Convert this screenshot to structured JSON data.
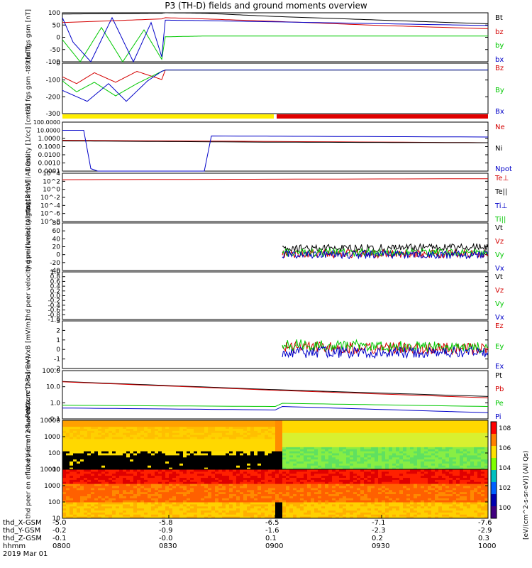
{
  "title": "P3 (TH-D) fields and ground moments overview",
  "footer": {
    "row_labels": [
      "thd_X-GSM",
      "thd_Y-GSM",
      "thd_Z-GSM",
      "hhmm",
      "2019 Mar 01"
    ],
    "ticks": [
      {
        "x": "-5.0",
        "y": "-0.2",
        "z": "-0.1",
        "t": "0800"
      },
      {
        "x": "-5.8",
        "y": "-0.9",
        "z": "-0.0",
        "t": "0830"
      },
      {
        "x": "-6.5",
        "y": "-1.6",
        "z": "0.1",
        "t": "0900"
      },
      {
        "x": "-7.1",
        "y": "-2.3",
        "z": "0.2",
        "t": "0930"
      },
      {
        "x": "-7.6",
        "y": "-2.9",
        "z": "0.3",
        "t": "1000"
      }
    ]
  },
  "colorbar_label": "[eV/(cm^2-s-sr-eV)] (All Qs)",
  "chart_data": [
    {
      "type": "line",
      "panel": "fgs_gsm",
      "ylabel": "thd fgs gsm [nT]",
      "ylim": [
        -100,
        100
      ],
      "ticks": [
        "100",
        "50",
        "0",
        "-50",
        "-100"
      ],
      "legend": [
        {
          "name": "Bt",
          "color": "#000000"
        },
        {
          "name": "bz",
          "color": "#d40000"
        },
        {
          "name": "by",
          "color": "#00c800"
        },
        {
          "name": "bx",
          "color": "#0000c8"
        }
      ],
      "series": [
        {
          "name": "Bt",
          "x": [
            0,
            20,
            28,
            29,
            40,
            60,
            90,
            120
          ],
          "y": [
            95,
            97,
            98,
            100,
            98,
            85,
            70,
            55
          ]
        },
        {
          "name": "bz",
          "x": [
            0,
            28,
            29,
            40,
            60,
            90,
            120
          ],
          "y": [
            60,
            75,
            80,
            75,
            65,
            48,
            35
          ]
        },
        {
          "name": "by",
          "x": [
            0,
            5,
            11,
            17,
            23,
            28,
            29,
            40,
            80,
            120
          ],
          "y": [
            -10,
            -100,
            40,
            -100,
            30,
            -90,
            2,
            5,
            5,
            5
          ]
        },
        {
          "name": "bx",
          "x": [
            0,
            3,
            8,
            14,
            20,
            25,
            28,
            29,
            40,
            80,
            120
          ],
          "y": [
            80,
            -20,
            -100,
            80,
            -100,
            60,
            -80,
            70,
            68,
            58,
            48
          ]
        }
      ]
    },
    {
      "type": "line",
      "panel": "fgs_gsm_t89",
      "ylabel": "thd fgs gsm -t89 [nT]",
      "ylim": [
        -320,
        50
      ],
      "ticks": [
        "0",
        "-100",
        "-200",
        "-300"
      ],
      "legend": [
        {
          "name": "Bz",
          "color": "#d40000"
        },
        {
          "name": "By",
          "color": "#00c800"
        },
        {
          "name": "Bx",
          "color": "#0000c8"
        }
      ],
      "series": [
        {
          "name": "Bz",
          "x": [
            0,
            4,
            9,
            15,
            21,
            28,
            29,
            120
          ],
          "y": [
            -50,
            -100,
            -20,
            -90,
            -10,
            -70,
            0,
            0
          ]
        },
        {
          "name": "By",
          "x": [
            0,
            4,
            9,
            15,
            21,
            28,
            29,
            120
          ],
          "y": [
            -80,
            -160,
            -90,
            -190,
            -100,
            -10,
            0,
            0
          ]
        },
        {
          "name": "Bx",
          "x": [
            0,
            7,
            13,
            18,
            24,
            28,
            29,
            120
          ],
          "y": [
            -150,
            -230,
            -100,
            -230,
            -80,
            -10,
            0,
            0
          ]
        }
      ]
    },
    {
      "type": "line",
      "panel": "density",
      "ylabel": "Density [1/cc] [cm-3]",
      "log": true,
      "ylim": [
        0.0001,
        100
      ],
      "ticks": [
        "100.0000",
        "10.0000",
        "1.0000",
        "0.1000",
        "0.0100",
        "0.0010",
        "0.0001"
      ],
      "legend": [
        {
          "name": "Ne",
          "color": "#d40000"
        },
        {
          "name": "Ni",
          "color": "#000000"
        },
        {
          "name": "Npot",
          "color": "#0000c8"
        }
      ],
      "series": [
        {
          "name": "Ne",
          "x": [
            0,
            120
          ],
          "y": [
            0.6,
            0.3
          ]
        },
        {
          "name": "Ni",
          "x": [
            0,
            60,
            120
          ],
          "y": [
            0.5,
            0.35,
            0.3
          ]
        },
        {
          "name": "Npot",
          "x": [
            0,
            6,
            8,
            10,
            12,
            40,
            42,
            120
          ],
          "y": [
            10,
            10,
            0.0002,
            0.0001,
            0.0001,
            0.0001,
            2,
            1.5
          ]
        }
      ]
    },
    {
      "type": "line",
      "panel": "magt3",
      "ylabel": "magt3 [eV]",
      "log": true,
      "ylim": [
        1e-10,
        100000.0
      ],
      "ticks": [
        "10^4",
        "10^2",
        "10^0",
        "10^-2",
        "10^-4",
        "10^-6",
        "10^-8"
      ],
      "legend": [
        {
          "name": "Te⊥",
          "color": "#d40000"
        },
        {
          "name": "Te||",
          "color": "#000000"
        },
        {
          "name": "Ti⊥",
          "color": "#0000c8"
        },
        {
          "name": "Ti||",
          "color": "#00c800"
        }
      ],
      "series": [
        {
          "name": "Te⊥",
          "x": [
            0,
            120
          ],
          "y": [
            1000,
            2000
          ]
        }
      ]
    },
    {
      "type": "line",
      "panel": "peir_velocity",
      "ylabel": "thd peir velocity gsm [km/s] (All Qs)",
      "ylim": [
        -40,
        80
      ],
      "ticks": [
        "80",
        "60",
        "40",
        "20",
        "0",
        "-20",
        "-40"
      ],
      "legend": [
        {
          "name": "Vt",
          "color": "#000000"
        },
        {
          "name": "Vz",
          "color": "#d40000"
        },
        {
          "name": "Vy",
          "color": "#00c800"
        },
        {
          "name": "Vx",
          "color": "#0000c8"
        }
      ],
      "series": [
        {
          "name": "Vt",
          "x": [
            62,
            120
          ],
          "y": [
            15,
            18
          ]
        },
        {
          "name": "Vz",
          "x": [
            62,
            120
          ],
          "y": [
            2,
            2
          ]
        },
        {
          "name": "Vy",
          "x": [
            62,
            120
          ],
          "y": [
            5,
            5
          ]
        },
        {
          "name": "Vx",
          "x": [
            62,
            120
          ],
          "y": [
            0,
            0
          ]
        }
      ]
    },
    {
      "type": "line",
      "panel": "peer_velocity",
      "ylabel": "thd peer velocity gsm [km/s] (All Qs)",
      "ylim": [
        -1,
        1
      ],
      "ticks": [
        "1.0",
        "0.8",
        "0.6",
        "0.4",
        "0.2",
        "0.0",
        "-0.2",
        "-0.4",
        "-0.6",
        "-0.8",
        "-1.0"
      ],
      "legend": [
        {
          "name": "Vt",
          "color": "#000000"
        },
        {
          "name": "Vz",
          "color": "#d40000"
        },
        {
          "name": "Vy",
          "color": "#00c800"
        },
        {
          "name": "Vx",
          "color": "#0000c8"
        }
      ],
      "series": []
    },
    {
      "type": "line",
      "panel": "efield",
      "ylabel": "E=-VxB [mV/m]",
      "ylim": [
        -2,
        3
      ],
      "ticks": [
        "3",
        "2",
        "1",
        "0",
        "-1",
        "-2"
      ],
      "legend": [
        {
          "name": "Ez",
          "color": "#d40000"
        },
        {
          "name": "Ey",
          "color": "#00c800"
        },
        {
          "name": "Ex",
          "color": "#0000c8"
        }
      ],
      "series": [
        {
          "name": "Ez",
          "x": [
            62,
            120
          ],
          "y": [
            0.2,
            0.1
          ]
        },
        {
          "name": "Ey",
          "x": [
            62,
            120
          ],
          "y": [
            0.5,
            0.2
          ]
        },
        {
          "name": "Ex",
          "x": [
            62,
            120
          ],
          "y": [
            -0.3,
            -0.3
          ]
        }
      ]
    },
    {
      "type": "line",
      "panel": "pressure",
      "ylabel": "Pressure [nPa]",
      "log": true,
      "ylim": [
        0.08,
        100
      ],
      "ticks": [
        "100.0",
        "10.0",
        "1.0",
        "0.1"
      ],
      "legend": [
        {
          "name": "Pt",
          "color": "#000000"
        },
        {
          "name": "Pb",
          "color": "#d40000"
        },
        {
          "name": "Pe",
          "color": "#00c800"
        },
        {
          "name": "Pi",
          "color": "#0000c8"
        }
      ],
      "series": [
        {
          "name": "Pt",
          "x": [
            0,
            60,
            120
          ],
          "y": [
            20,
            6,
            2.2
          ]
        },
        {
          "name": "Pb",
          "x": [
            0,
            60,
            120
          ],
          "y": [
            19,
            5.5,
            1.8
          ]
        },
        {
          "name": "Pe",
          "x": [
            0,
            60,
            62,
            120
          ],
          "y": [
            0.6,
            0.5,
            0.8,
            0.5
          ]
        },
        {
          "name": "Pi",
          "x": [
            0,
            60,
            62,
            120
          ],
          "y": [
            0.4,
            0.3,
            0.5,
            0.2
          ]
        }
      ]
    },
    {
      "type": "heatmap",
      "panel": "peir_eflux",
      "ylabel": "thd peir en eflux eV (cm^2-s-sr-eV)",
      "log": true,
      "ylim": [
        5,
        20000
      ],
      "ticks": [
        "10000",
        "1000",
        "100",
        "10"
      ]
    },
    {
      "type": "heatmap",
      "panel": "peer_eflux",
      "ylabel": "thd peer en eflux eV (cm^2-s-sr-eV)",
      "log": true,
      "ylim": [
        5,
        20000
      ],
      "ticks": [
        "10000",
        "1000",
        "100",
        "10"
      ],
      "colorbar_ticks": [
        "10^8",
        "10^6",
        "10^4",
        "10^2",
        "10^0"
      ]
    }
  ]
}
